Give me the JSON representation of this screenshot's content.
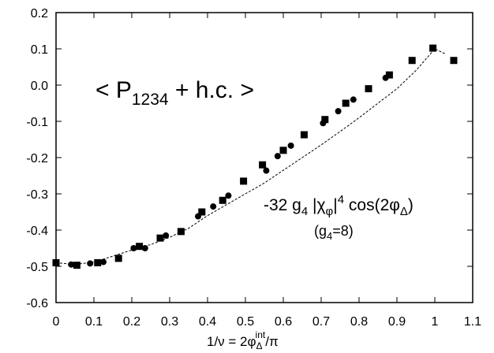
{
  "chart_data": {
    "type": "scatter",
    "xlim": [
      0,
      1.1
    ],
    "ylim": [
      -0.6,
      0.2
    ],
    "x_ticks": [
      "0",
      "0.1",
      "0.2",
      "0.3",
      "0.4",
      "0.5",
      "0.6",
      "0.7",
      "0.8",
      "0.9",
      "1",
      "1.1"
    ],
    "y_ticks": [
      "0.2",
      "0.1",
      "0.0",
      "-0.1",
      "-0.2",
      "-0.3",
      "-0.4",
      "-0.5",
      "-0.6"
    ],
    "xlabel": {
      "prefix": "1/ν = 2φ",
      "sub": "Δ",
      "sup": "int",
      "suffix": "/π"
    },
    "annotation": {
      "prefix": "< P",
      "sub": "1234",
      "suffix": " + h.c. >"
    },
    "formula": {
      "part1": "-32 g",
      "sub1": "4",
      "part2": " |χ",
      "sub2": "φ",
      "part3": "|",
      "sup3": "4",
      "part4": " cos(2φ",
      "sub4": "Δ",
      "part5": ")"
    },
    "formula_note": {
      "prefix": "(g",
      "sub": "4",
      "suffix": "=8)"
    },
    "grid": false,
    "series": [
      {
        "marker": "square",
        "points": [
          [
            0.0,
            -0.49
          ],
          [
            0.055,
            -0.497
          ],
          [
            0.11,
            -0.49
          ],
          [
            0.165,
            -0.478
          ],
          [
            0.22,
            -0.445
          ],
          [
            0.275,
            -0.422
          ],
          [
            0.33,
            -0.404
          ],
          [
            0.385,
            -0.35
          ],
          [
            0.44,
            -0.318
          ],
          [
            0.495,
            -0.265
          ],
          [
            0.545,
            -0.22
          ],
          [
            0.6,
            -0.18
          ],
          [
            0.655,
            -0.137
          ],
          [
            0.71,
            -0.095
          ],
          [
            0.765,
            -0.05
          ],
          [
            0.825,
            -0.01
          ],
          [
            0.88,
            0.028
          ],
          [
            0.94,
            0.068
          ],
          [
            0.995,
            0.102
          ],
          [
            1.05,
            0.068
          ]
        ]
      },
      {
        "marker": "circle",
        "points": [
          [
            0.04,
            -0.495
          ],
          [
            0.09,
            -0.492
          ],
          [
            0.125,
            -0.488
          ],
          [
            0.205,
            -0.45
          ],
          [
            0.235,
            -0.45
          ],
          [
            0.29,
            -0.415
          ],
          [
            0.375,
            -0.362
          ],
          [
            0.415,
            -0.335
          ],
          [
            0.455,
            -0.305
          ],
          [
            0.555,
            -0.236
          ],
          [
            0.585,
            -0.196
          ],
          [
            0.62,
            -0.167
          ],
          [
            0.705,
            -0.105
          ],
          [
            0.745,
            -0.072
          ],
          [
            0.785,
            -0.04
          ],
          [
            0.87,
            0.02
          ]
        ]
      },
      {
        "marker": "dashed-line",
        "points": [
          [
            0.0,
            -0.49
          ],
          [
            0.05,
            -0.495
          ],
          [
            0.1,
            -0.488
          ],
          [
            0.15,
            -0.472
          ],
          [
            0.2,
            -0.455
          ],
          [
            0.25,
            -0.44
          ],
          [
            0.3,
            -0.42
          ],
          [
            0.35,
            -0.395
          ],
          [
            0.4,
            -0.36
          ],
          [
            0.45,
            -0.33
          ],
          [
            0.5,
            -0.3
          ],
          [
            0.55,
            -0.27
          ],
          [
            0.6,
            -0.235
          ],
          [
            0.65,
            -0.2
          ],
          [
            0.7,
            -0.165
          ],
          [
            0.75,
            -0.128
          ],
          [
            0.8,
            -0.09
          ],
          [
            0.85,
            -0.05
          ],
          [
            0.9,
            -0.01
          ],
          [
            0.95,
            0.04
          ],
          [
            1.0,
            0.1
          ],
          [
            1.03,
            0.085
          ]
        ]
      }
    ]
  }
}
